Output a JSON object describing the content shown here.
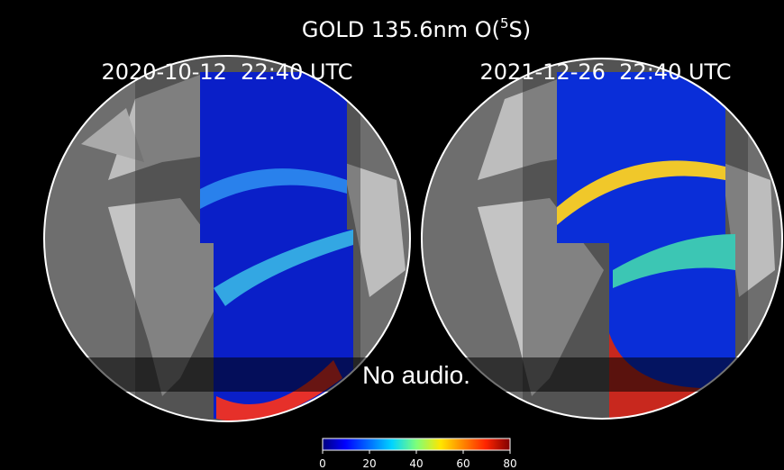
{
  "title": {
    "prefix": "GOLD 135.6nm O(",
    "sup": "5",
    "suffix": "S)"
  },
  "panels": [
    {
      "label": "2020-10-12  22:40 UTC"
    },
    {
      "label": "2021-12-26  22:40 UTC"
    }
  ],
  "colorbar": {
    "ticks": [
      "0",
      "20",
      "40",
      "60",
      "80"
    ]
  },
  "caption": "No audio."
}
